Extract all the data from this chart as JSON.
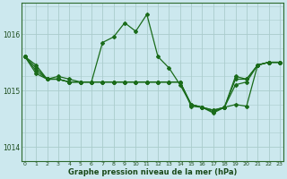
{
  "title": "Graphe pression niveau de la mer (hPa)",
  "bg_color": "#cce8ee",
  "grid_color": "#aacccc",
  "line_color": "#1a6b1a",
  "x_ticks": [
    0,
    1,
    2,
    3,
    4,
    5,
    6,
    7,
    8,
    9,
    10,
    11,
    12,
    13,
    14,
    15,
    16,
    17,
    18,
    19,
    20,
    21,
    22,
    23
  ],
  "y_ticks": [
    1014,
    1015,
    1016
  ],
  "ylim": [
    1013.75,
    1016.55
  ],
  "xlim": [
    -0.3,
    23.3
  ],
  "series1": [
    1015.6,
    1015.45,
    1015.2,
    1015.25,
    1015.2,
    1015.15,
    1015.15,
    1015.85,
    1015.95,
    1016.2,
    1016.05,
    1016.35,
    1015.6,
    1015.4,
    1015.1,
    1014.75,
    1014.7,
    1014.6,
    1014.7,
    1014.75,
    1014.72,
    1015.45,
    1015.5,
    1015.5
  ],
  "series2": [
    1015.6,
    1015.35,
    1015.2,
    1015.2,
    1015.15,
    1015.15,
    1015.15,
    1015.15,
    1015.15,
    1015.15,
    1015.15,
    1015.15,
    1015.15,
    1015.15,
    1015.15,
    1014.75,
    1014.7,
    1014.65,
    1014.7,
    1015.2,
    1015.2,
    1015.45,
    1015.5,
    1015.5
  ],
  "series3": [
    1015.6,
    1015.3,
    1015.2,
    1015.2,
    1015.15,
    1015.15,
    1015.15,
    1015.15,
    1015.15,
    1015.15,
    1015.15,
    1015.15,
    1015.15,
    1015.15,
    1015.15,
    1014.72,
    1014.7,
    1014.65,
    1014.7,
    1015.1,
    1015.15,
    1015.45,
    1015.5,
    1015.5
  ],
  "series4": [
    1015.6,
    1015.4,
    1015.2,
    1015.2,
    1015.15,
    1015.15,
    1015.15,
    1015.15,
    1015.15,
    1015.15,
    1015.15,
    1015.15,
    1015.15,
    1015.15,
    1015.15,
    1014.75,
    1014.7,
    1014.62,
    1014.7,
    1015.25,
    1015.2,
    1015.45,
    1015.5,
    1015.5
  ]
}
